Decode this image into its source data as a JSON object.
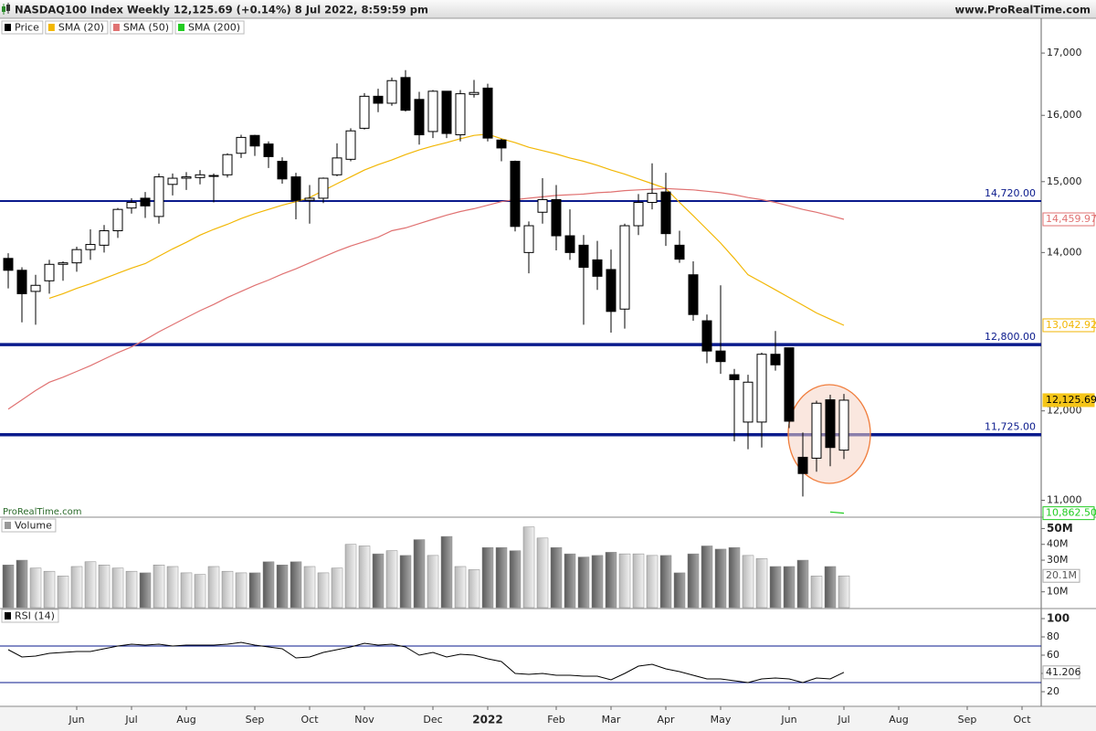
{
  "chart_data": [
    {
      "type": "candlestick",
      "title": "NASDAQ100 Index Weekly 12,125.69 (+0.14%) 8 Jul 2022, 8:59:59 pm",
      "source": "www.ProRealTime.com",
      "watermark": "ProRealTime.com",
      "log_scale": true,
      "ylim": [
        10830,
        17570
      ],
      "yticks": [
        {
          "value": 11000,
          "label": "11,000"
        },
        {
          "value": 12000,
          "label": "12,000"
        },
        {
          "value": 14000,
          "label": "14,000"
        },
        {
          "value": 15000,
          "label": "15,000"
        },
        {
          "value": 16000,
          "label": "16,000"
        },
        {
          "value": 17000,
          "label": "17,000"
        }
      ],
      "categories": [
        null,
        null,
        null,
        null,
        null,
        "Jun",
        null,
        null,
        null,
        "Jul",
        null,
        null,
        null,
        "Aug",
        null,
        null,
        null,
        null,
        "Sep",
        null,
        null,
        null,
        "Oct",
        null,
        null,
        null,
        "Nov",
        null,
        null,
        null,
        null,
        "Dec",
        null,
        null,
        null,
        "2022",
        null,
        null,
        null,
        null,
        "Feb",
        null,
        null,
        null,
        "Mar",
        null,
        null,
        null,
        "Apr",
        null,
        null,
        null,
        "May",
        null,
        null,
        null,
        null,
        "Jun",
        null,
        null,
        null,
        "Jul",
        null,
        null,
        null,
        "Aug",
        null,
        null,
        null,
        null,
        "Sep",
        null,
        null,
        null,
        "Oct",
        null
      ],
      "price": {
        "name": "Price",
        "color": "#000000",
        "last_label": "12,125.69",
        "last_color": "#f5c518",
        "open": [
          13920,
          13760,
          13480,
          13620,
          13840,
          13860,
          14040,
          14100,
          14300,
          14620,
          14760,
          14500,
          14960,
          15050,
          15060,
          15080,
          15100,
          15420,
          15690,
          15560,
          15300,
          15070,
          14730,
          14760,
          15100,
          15330,
          15800,
          16300,
          16190,
          16600,
          16250,
          15750,
          16380,
          15700,
          16330,
          16430,
          15620,
          15300,
          14000,
          14560,
          14740,
          14230,
          14100,
          13900,
          13770,
          13250,
          14370,
          14700,
          14850,
          14100,
          13700,
          13100,
          12720,
          12430,
          11870,
          11870,
          12680,
          12760,
          11470,
          11460,
          12130,
          11550,
          null,
          null,
          null,
          null,
          null,
          null,
          null,
          null,
          null,
          null,
          null,
          null,
          null,
          null
        ],
        "high": [
          13990,
          13800,
          13700,
          13900,
          13880,
          14080,
          14320,
          14380,
          14620,
          14760,
          14850,
          15120,
          15120,
          15140,
          15170,
          15120,
          15420,
          15700,
          15700,
          15600,
          15360,
          15130,
          14950,
          15060,
          15570,
          15800,
          16350,
          16420,
          16600,
          16720,
          16370,
          16400,
          16380,
          16400,
          16560,
          16500,
          15640,
          15310,
          14430,
          15050,
          14950,
          14600,
          14240,
          14160,
          14040,
          14400,
          14820,
          15270,
          15130,
          14300,
          13880,
          13180,
          13560,
          12500,
          12430,
          12700,
          12970,
          12760,
          11750,
          12120,
          12190,
          12200,
          null,
          null,
          null,
          null,
          null,
          null,
          null,
          null,
          null,
          null,
          null,
          null,
          null,
          null
        ],
        "low": [
          13520,
          13080,
          13050,
          13450,
          13620,
          13740,
          13900,
          14000,
          14200,
          14540,
          14480,
          14400,
          14800,
          14880,
          14960,
          14700,
          15060,
          15350,
          15380,
          15200,
          14970,
          14460,
          14400,
          14690,
          15080,
          15300,
          15780,
          16050,
          16150,
          16060,
          15550,
          15650,
          15650,
          15600,
          16280,
          15600,
          15300,
          14290,
          13720,
          14400,
          14030,
          13900,
          13050,
          13500,
          12950,
          13000,
          14240,
          14600,
          14090,
          13860,
          13100,
          12570,
          12440,
          11650,
          11560,
          11580,
          12480,
          11800,
          11040,
          11310,
          11370,
          11450,
          null,
          null,
          null,
          null,
          null,
          null,
          null,
          null,
          null,
          null,
          null,
          null,
          null,
          null
        ],
        "close": [
          13760,
          13450,
          13560,
          13840,
          13860,
          14040,
          14110,
          14300,
          14600,
          14700,
          14650,
          15070,
          15050,
          15070,
          15100,
          15090,
          15400,
          15660,
          15530,
          15370,
          15040,
          14730,
          14760,
          15050,
          15350,
          15760,
          16300,
          16190,
          16550,
          16080,
          15700,
          16380,
          15720,
          16340,
          16360,
          15650,
          15500,
          14360,
          14370,
          14740,
          14230,
          14000,
          13800,
          13680,
          13220,
          14370,
          14700,
          14830,
          14260,
          13910,
          13180,
          12720,
          12590,
          12370,
          12340,
          12680,
          12550,
          11880,
          11290,
          12090,
          11580,
          12125.69,
          null,
          null,
          null,
          null,
          null,
          null,
          null,
          null,
          null,
          null,
          null,
          null,
          null,
          null
        ]
      },
      "series": [
        {
          "name": "SMA (20)",
          "color": "#f2b705",
          "last_label": "13,042.92",
          "values": [
            null,
            null,
            null,
            13390,
            13450,
            13520,
            13580,
            13650,
            13720,
            13790,
            13850,
            13950,
            14050,
            14140,
            14240,
            14320,
            14390,
            14470,
            14540,
            14600,
            14660,
            14710,
            14770,
            14870,
            14970,
            15070,
            15170,
            15250,
            15320,
            15400,
            15470,
            15530,
            15580,
            15640,
            15690,
            15710,
            15640,
            15580,
            15510,
            15460,
            15410,
            15350,
            15300,
            15240,
            15170,
            15110,
            15040,
            14970,
            14900,
            14700,
            14510,
            14320,
            14130,
            13920,
            13700,
            13600,
            13500,
            13400,
            13300,
            13200,
            13120,
            13042.92,
            null,
            null,
            null,
            null,
            null,
            null,
            null,
            null,
            null,
            null,
            null,
            null,
            null,
            null
          ]
        },
        {
          "name": "SMA (50)",
          "color": "#e07272",
          "last_label": "14,459.97",
          "values": [
            12020,
            12130,
            12240,
            12340,
            12400,
            12470,
            12540,
            12620,
            12700,
            12770,
            12860,
            12960,
            13050,
            13140,
            13230,
            13310,
            13400,
            13480,
            13560,
            13630,
            13710,
            13780,
            13860,
            13940,
            14020,
            14090,
            14150,
            14210,
            14300,
            14340,
            14400,
            14460,
            14520,
            14570,
            14610,
            14660,
            14710,
            14740,
            14760,
            14780,
            14800,
            14810,
            14820,
            14840,
            14850,
            14870,
            14880,
            14890,
            14900,
            14890,
            14880,
            14860,
            14840,
            14810,
            14770,
            14740,
            14700,
            14650,
            14600,
            14560,
            14510,
            14459.97,
            null,
            null,
            null,
            null,
            null,
            null,
            null,
            null,
            null,
            null,
            null,
            null,
            null,
            null
          ]
        },
        {
          "name": "SMA (200)",
          "color": "#22cc22",
          "last_label": "10,862.50",
          "values": [
            null,
            null,
            null,
            null,
            null,
            null,
            null,
            null,
            null,
            null,
            null,
            null,
            null,
            null,
            null,
            null,
            null,
            null,
            null,
            null,
            null,
            null,
            null,
            null,
            null,
            null,
            null,
            null,
            null,
            null,
            null,
            null,
            null,
            null,
            null,
            null,
            null,
            null,
            null,
            null,
            null,
            null,
            null,
            null,
            null,
            null,
            null,
            null,
            null,
            null,
            null,
            null,
            null,
            null,
            null,
            null,
            null,
            null,
            null,
            null,
            10875,
            10862.5,
            null,
            null,
            null,
            null,
            null,
            null,
            null,
            null,
            null,
            null,
            null,
            null,
            null,
            null
          ]
        }
      ],
      "hlines": [
        {
          "value": 14720,
          "label": "14,720.00",
          "weight": "normal",
          "color": "#0a1a8c"
        },
        {
          "value": 12800,
          "label": "12,800.00",
          "weight": "bold",
          "color": "#0a1a8c"
        },
        {
          "value": 11725,
          "label": "11,725.00",
          "weight": "bold",
          "color": "#0a1a8c"
        }
      ]
    },
    {
      "type": "bar",
      "name": "Volume",
      "ylim": [
        0,
        56600000
      ],
      "yticks": [
        {
          "value": 10000000,
          "label": "10M"
        },
        {
          "value": 30000000,
          "label": "30M"
        },
        {
          "value": 40000000,
          "label": "40M"
        },
        {
          "value": 50000000,
          "label": "50M"
        }
      ],
      "last_label": "20.1M",
      "values": [
        27000000,
        30000000,
        25000000,
        23000000,
        20000000,
        26000000,
        29000000,
        27000000,
        25000000,
        23000000,
        22000000,
        27000000,
        26000000,
        22000000,
        21000000,
        26000000,
        23000000,
        22000000,
        22000000,
        29000000,
        27000000,
        29000000,
        26000000,
        22000000,
        25000000,
        40000000,
        39000000,
        34000000,
        36000000,
        33000000,
        43000000,
        33000000,
        45000000,
        26000000,
        24000000,
        38000000,
        38000000,
        36000000,
        51000000,
        44000000,
        38000000,
        34000000,
        32000000,
        33000000,
        35000000,
        34000000,
        34000000,
        33000000,
        33000000,
        22000000,
        34000000,
        39000000,
        37000000,
        38000000,
        33000000,
        31000000,
        26000000,
        26000000,
        30000000,
        20000000,
        26000000,
        20100000,
        null,
        null,
        null,
        null,
        null,
        null,
        null,
        null,
        null,
        null,
        null,
        null,
        null,
        null
      ]
    },
    {
      "type": "line",
      "name": "RSI (14)",
      "color": "#000000",
      "ylim": [
        5,
        109
      ],
      "yticks": [
        20,
        40,
        60,
        80,
        100
      ],
      "levels": [
        30,
        70
      ],
      "level_color": "#0a1a8c",
      "last_label": "41.206",
      "values": [
        66,
        58,
        59,
        62,
        63,
        64,
        64,
        67,
        70,
        72,
        71,
        72,
        70,
        71,
        71,
        71,
        72,
        74,
        71,
        69,
        67,
        57,
        58,
        63,
        66,
        69,
        73,
        71,
        72,
        69,
        60,
        63,
        58,
        61,
        60,
        56,
        53,
        40,
        39,
        40,
        38,
        38,
        37,
        37,
        33,
        40,
        48,
        50,
        45,
        42,
        38,
        34,
        34,
        32,
        30,
        34,
        35,
        34,
        30,
        35,
        34,
        41.206,
        null,
        null,
        null,
        null,
        null,
        null,
        null,
        null,
        null,
        null,
        null,
        null,
        null,
        null
      ]
    }
  ]
}
